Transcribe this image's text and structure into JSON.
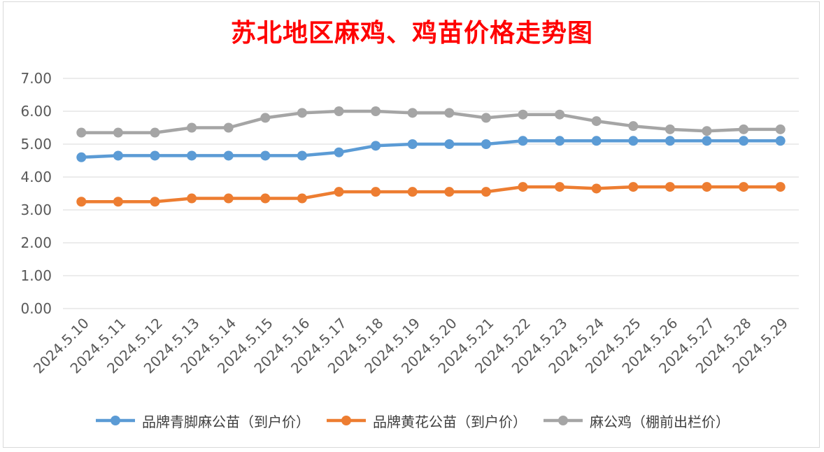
{
  "chart_data": {
    "type": "line",
    "title": "苏北地区麻鸡、鸡苗价格走势图",
    "xlabel": "",
    "ylabel": "",
    "ylim": [
      0,
      7
    ],
    "yticks": [
      "0.00",
      "1.00",
      "2.00",
      "3.00",
      "4.00",
      "5.00",
      "6.00",
      "7.00"
    ],
    "grid": true,
    "legend_position": "bottom",
    "categories": [
      "2024.5.10",
      "2024.5.11",
      "2024.5.12",
      "2024.5.13",
      "2024.5.14",
      "2024.5.15",
      "2024.5.16",
      "2024.5.17",
      "2024.5.18",
      "2024.5.19",
      "2024.5.20",
      "2024.5.21",
      "2024.5.22",
      "2024.5.23",
      "2024.5.24",
      "2024.5.25",
      "2024.5.26",
      "2024.5.27",
      "2024.5.28",
      "2024.5.29"
    ],
    "series": [
      {
        "name": "品牌青脚麻公苗（到户价）",
        "color": "#5b9bd5",
        "values": [
          4.6,
          4.65,
          4.65,
          4.65,
          4.65,
          4.65,
          4.65,
          4.75,
          4.95,
          5.0,
          5.0,
          5.0,
          5.1,
          5.1,
          5.1,
          5.1,
          5.1,
          5.1,
          5.1,
          5.1
        ]
      },
      {
        "name": "品牌黄花公苗（到户价）",
        "color": "#ed7d31",
        "values": [
          3.25,
          3.25,
          3.25,
          3.35,
          3.35,
          3.35,
          3.35,
          3.55,
          3.55,
          3.55,
          3.55,
          3.55,
          3.7,
          3.7,
          3.65,
          3.7,
          3.7,
          3.7,
          3.7,
          3.7
        ]
      },
      {
        "name": "麻公鸡（棚前出栏价）",
        "color": "#a5a5a5",
        "values": [
          5.35,
          5.35,
          5.35,
          5.5,
          5.5,
          5.8,
          5.95,
          6.0,
          6.0,
          5.95,
          5.95,
          5.8,
          5.9,
          5.9,
          5.7,
          5.55,
          5.45,
          5.4,
          5.45,
          5.45
        ]
      }
    ]
  }
}
